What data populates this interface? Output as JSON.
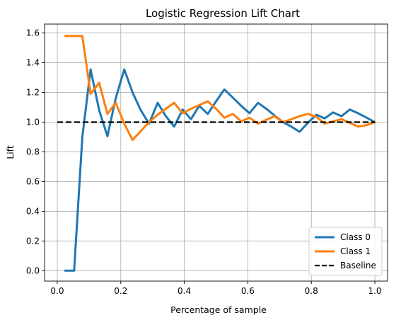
{
  "chart_data": {
    "type": "line",
    "title": "Logistic Regression Lift Chart",
    "xlabel": "Percentage of sample",
    "ylabel": "Lift",
    "xlim": [
      -0.04,
      1.04
    ],
    "ylim": [
      -0.07,
      1.66
    ],
    "xticks": [
      0.0,
      0.2,
      0.4,
      0.6,
      0.8,
      1.0
    ],
    "xtick_labels": [
      "0.0",
      "0.2",
      "0.4",
      "0.6",
      "0.8",
      "1.0"
    ],
    "yticks": [
      0.0,
      0.2,
      0.4,
      0.6,
      0.8,
      1.0,
      1.2,
      1.4,
      1.6
    ],
    "ytick_labels": [
      "0.0",
      "0.2",
      "0.4",
      "0.6",
      "0.8",
      "1.0",
      "1.2",
      "1.4",
      "1.6"
    ],
    "grid": true,
    "legend_position": "lower-right",
    "series": [
      {
        "name": "Class 0",
        "color": "#1f77b4",
        "style": "solid",
        "points": [
          [
            0.026,
            0.0
          ],
          [
            0.053,
            0.0
          ],
          [
            0.079,
            0.9
          ],
          [
            0.105,
            1.355
          ],
          [
            0.132,
            1.08
          ],
          [
            0.158,
            0.905
          ],
          [
            0.184,
            1.16
          ],
          [
            0.211,
            1.355
          ],
          [
            0.237,
            1.2
          ],
          [
            0.263,
            1.08
          ],
          [
            0.289,
            0.99
          ],
          [
            0.316,
            1.13
          ],
          [
            0.342,
            1.04
          ],
          [
            0.368,
            0.97
          ],
          [
            0.395,
            1.085
          ],
          [
            0.421,
            1.02
          ],
          [
            0.447,
            1.11
          ],
          [
            0.474,
            1.055
          ],
          [
            0.5,
            1.14
          ],
          [
            0.526,
            1.22
          ],
          [
            0.553,
            1.165
          ],
          [
            0.579,
            1.11
          ],
          [
            0.605,
            1.06
          ],
          [
            0.632,
            1.13
          ],
          [
            0.658,
            1.09
          ],
          [
            0.684,
            1.045
          ],
          [
            0.711,
            1.0
          ],
          [
            0.737,
            0.97
          ],
          [
            0.763,
            0.935
          ],
          [
            0.789,
            0.995
          ],
          [
            0.816,
            1.05
          ],
          [
            0.842,
            1.025
          ],
          [
            0.868,
            1.065
          ],
          [
            0.895,
            1.04
          ],
          [
            0.921,
            1.085
          ],
          [
            0.947,
            1.06
          ],
          [
            0.974,
            1.03
          ],
          [
            1.0,
            1.0
          ]
        ]
      },
      {
        "name": "Class 1",
        "color": "#ff7f0e",
        "style": "solid",
        "points": [
          [
            0.026,
            1.58
          ],
          [
            0.053,
            1.58
          ],
          [
            0.079,
            1.58
          ],
          [
            0.105,
            1.19
          ],
          [
            0.132,
            1.265
          ],
          [
            0.158,
            1.055
          ],
          [
            0.184,
            1.13
          ],
          [
            0.211,
            0.99
          ],
          [
            0.237,
            0.88
          ],
          [
            0.263,
            0.94
          ],
          [
            0.289,
            1.0
          ],
          [
            0.316,
            1.05
          ],
          [
            0.342,
            1.09
          ],
          [
            0.368,
            1.13
          ],
          [
            0.395,
            1.06
          ],
          [
            0.421,
            1.09
          ],
          [
            0.447,
            1.115
          ],
          [
            0.474,
            1.14
          ],
          [
            0.5,
            1.09
          ],
          [
            0.526,
            1.03
          ],
          [
            0.553,
            1.055
          ],
          [
            0.579,
            1.005
          ],
          [
            0.605,
            1.03
          ],
          [
            0.632,
            0.99
          ],
          [
            0.658,
            1.015
          ],
          [
            0.684,
            1.04
          ],
          [
            0.711,
            1.0
          ],
          [
            0.737,
            1.02
          ],
          [
            0.763,
            1.04
          ],
          [
            0.789,
            1.055
          ],
          [
            0.816,
            1.035
          ],
          [
            0.842,
            0.99
          ],
          [
            0.868,
            1.005
          ],
          [
            0.895,
            1.02
          ],
          [
            0.921,
            0.995
          ],
          [
            0.947,
            0.97
          ],
          [
            0.974,
            0.98
          ],
          [
            1.0,
            1.0
          ]
        ]
      },
      {
        "name": "Baseline",
        "color": "#000000",
        "style": "dashed",
        "points": [
          [
            0.0,
            1.0
          ],
          [
            1.0,
            1.0
          ]
        ]
      }
    ]
  }
}
